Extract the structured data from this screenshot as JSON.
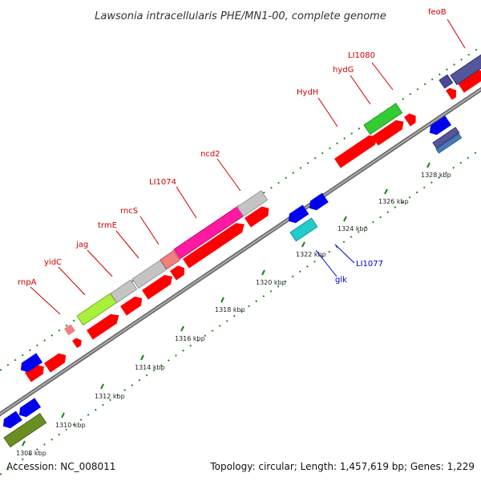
{
  "title": "Lawsonia intracellularis PHE/MN1-00, complete genome",
  "footer": {
    "accession": "Accession: NC_008011",
    "summary": "Topology: circular; Length: 1,457,619 bp; Genes: 1,229"
  },
  "colors": {
    "forward_label": "#cc0000",
    "reverse_label": "#0000cc",
    "cds_red": "#ff0000",
    "cds_blue": "#0000ee",
    "backbone": "#888888",
    "tick_green": "#118811"
  },
  "ruler_ticks": [
    "1308 kbp",
    "1310 kbp",
    "1312 kbp",
    "1314 kbp",
    "1316 kbp",
    "1318 kbp",
    "1320 kbp",
    "1322 kbp",
    "1324 kbp",
    "1326 kbp",
    "1328 kbp"
  ],
  "forward_gene_labels": [
    "rnpA",
    "yidC",
    "jag",
    "trmE",
    "rncS",
    "LI1074",
    "ncd2",
    "HydH",
    "hydG",
    "LI1080",
    "feoB"
  ],
  "reverse_gene_labels": [
    "LI1077",
    "glk"
  ]
}
